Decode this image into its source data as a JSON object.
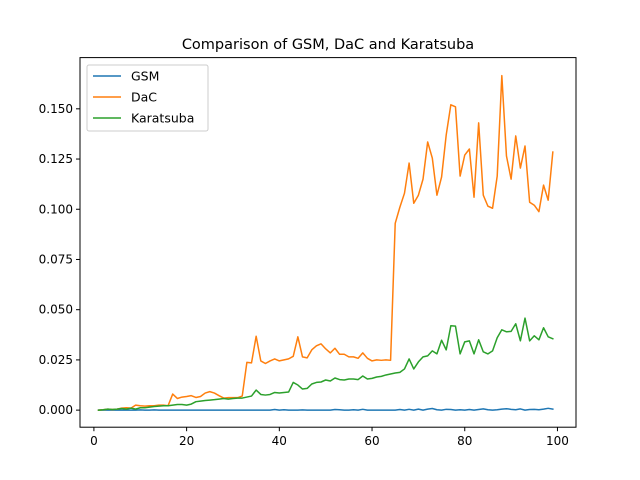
{
  "chart_data": {
    "type": "line",
    "title": "Comparison of GSM, DaC and Karatsuba",
    "xlabel": "",
    "ylabel": "",
    "xlim": [
      -3,
      104
    ],
    "ylim": [
      -0.0085,
      0.1755
    ],
    "xticks": [
      0,
      20,
      40,
      60,
      80,
      100
    ],
    "yticks": [
      0.0,
      0.025,
      0.05,
      0.075,
      0.1,
      0.125,
      0.15
    ],
    "ytick_labels": [
      "0.000",
      "0.025",
      "0.050",
      "0.075",
      "0.100",
      "0.125",
      "0.150"
    ],
    "xtick_labels": [
      "0",
      "20",
      "40",
      "60",
      "80",
      "100"
    ],
    "grid": false,
    "legend_position": "top-left",
    "x": [
      1,
      2,
      3,
      4,
      5,
      6,
      7,
      8,
      9,
      10,
      11,
      12,
      13,
      14,
      15,
      16,
      17,
      18,
      19,
      20,
      21,
      22,
      23,
      24,
      25,
      26,
      27,
      28,
      29,
      30,
      31,
      32,
      33,
      34,
      35,
      36,
      37,
      38,
      39,
      40,
      41,
      42,
      43,
      44,
      45,
      46,
      47,
      48,
      49,
      50,
      51,
      52,
      53,
      54,
      55,
      56,
      57,
      58,
      59,
      60,
      61,
      62,
      63,
      64,
      65,
      66,
      67,
      68,
      69,
      70,
      71,
      72,
      73,
      74,
      75,
      76,
      77,
      78,
      79,
      80,
      81,
      82,
      83,
      84,
      85,
      86,
      87,
      88,
      89,
      90,
      91,
      92,
      93,
      94,
      95,
      96,
      97,
      98,
      99
    ],
    "series": [
      {
        "name": "GSM",
        "color": "#1f77b4",
        "values": [
          0.0,
          0.0,
          0.0,
          0.0,
          0.0,
          0.0,
          0.0,
          0.0,
          0.0,
          0.0001,
          0.0,
          0.0,
          0.0001,
          0.0,
          0.0,
          0.0,
          0.0,
          0.0,
          0.0,
          0.0,
          0.0,
          0.0,
          0.0,
          0.0,
          0.0,
          0.0,
          0.0,
          0.0,
          0.0,
          0.0,
          0.0,
          0.0,
          0.0,
          0.0,
          0.0,
          0.0,
          0.0,
          0.0,
          0.0003,
          0.0,
          0.0002,
          0.0,
          0.0,
          0.0,
          0.0001,
          0.0,
          0.0,
          0.0,
          0.0,
          0.0,
          0.0,
          0.0003,
          0.0002,
          0.0,
          0.0,
          0.0002,
          0.0,
          0.0004,
          0.0,
          0.0,
          0.0,
          0.0,
          0.0,
          0.0,
          0.0,
          0.0003,
          0.0,
          0.0004,
          0.0,
          0.0005,
          0.0,
          0.0005,
          0.0008,
          0.0002,
          0.0,
          0.0004,
          0.0003,
          0.0,
          0.0002,
          0.0,
          0.0003,
          0.0,
          0.0003,
          0.0006,
          0.0002,
          0.0,
          0.0002,
          0.0005,
          0.0007,
          0.0004,
          0.0002,
          0.0006,
          0.0,
          0.0003,
          0.0004,
          0.0002,
          0.0005,
          0.0009,
          0.0005
        ]
      },
      {
        "name": "DaC",
        "color": "#ff7f0e",
        "values": [
          0.0,
          0.0002,
          0.0005,
          0.0003,
          0.0005,
          0.001,
          0.0012,
          0.001,
          0.0025,
          0.0022,
          0.002,
          0.0022,
          0.0022,
          0.0025,
          0.0025,
          0.0022,
          0.008,
          0.0058,
          0.0065,
          0.0068,
          0.0072,
          0.0063,
          0.0068,
          0.0085,
          0.0092,
          0.0085,
          0.0072,
          0.006,
          0.0062,
          0.0062,
          0.0062,
          0.007,
          0.0238,
          0.0235,
          0.0368,
          0.0245,
          0.0232,
          0.0245,
          0.0255,
          0.0245,
          0.025,
          0.0255,
          0.0268,
          0.0365,
          0.0265,
          0.026,
          0.03,
          0.032,
          0.033,
          0.0305,
          0.0285,
          0.0308,
          0.0278,
          0.0278,
          0.0265,
          0.0265,
          0.0258,
          0.0285,
          0.0258,
          0.0245,
          0.025,
          0.0248,
          0.025,
          0.0248,
          0.093,
          0.101,
          0.108,
          0.123,
          0.103,
          0.107,
          0.115,
          0.1335,
          0.1255,
          0.107,
          0.116,
          0.137,
          0.152,
          0.151,
          0.1165,
          0.127,
          0.13,
          0.106,
          0.143,
          0.107,
          0.1015,
          0.1005,
          0.1165,
          0.1665,
          0.1265,
          0.115,
          0.1365,
          0.1205,
          0.1315,
          0.1035,
          0.102,
          0.0988,
          0.112,
          0.1045,
          0.1285
        ]
      },
      {
        "name": "Karatsuba",
        "color": "#2ca02c",
        "values": [
          0.0,
          0.0002,
          0.0005,
          0.0003,
          0.0005,
          0.0008,
          0.0005,
          0.001,
          0.0005,
          0.0012,
          0.0012,
          0.0015,
          0.0018,
          0.002,
          0.0022,
          0.0022,
          0.0025,
          0.0028,
          0.0028,
          0.0025,
          0.003,
          0.0042,
          0.0045,
          0.0048,
          0.005,
          0.0052,
          0.0055,
          0.0058,
          0.0055,
          0.0058,
          0.006,
          0.006,
          0.0065,
          0.007,
          0.01,
          0.0078,
          0.0075,
          0.0078,
          0.0088,
          0.0085,
          0.0088,
          0.009,
          0.0138,
          0.0125,
          0.0105,
          0.0108,
          0.013,
          0.0138,
          0.014,
          0.015,
          0.0145,
          0.016,
          0.0152,
          0.015,
          0.0155,
          0.0155,
          0.0152,
          0.017,
          0.0155,
          0.0158,
          0.0165,
          0.0168,
          0.0175,
          0.018,
          0.0185,
          0.0188,
          0.0205,
          0.0255,
          0.0205,
          0.024,
          0.0265,
          0.027,
          0.0295,
          0.028,
          0.0348,
          0.03,
          0.042,
          0.0418,
          0.028,
          0.034,
          0.0345,
          0.028,
          0.035,
          0.029,
          0.028,
          0.0295,
          0.036,
          0.04,
          0.039,
          0.0392,
          0.043,
          0.0345,
          0.0458,
          0.0345,
          0.037,
          0.035,
          0.041,
          0.0365,
          0.0355
        ]
      }
    ]
  }
}
